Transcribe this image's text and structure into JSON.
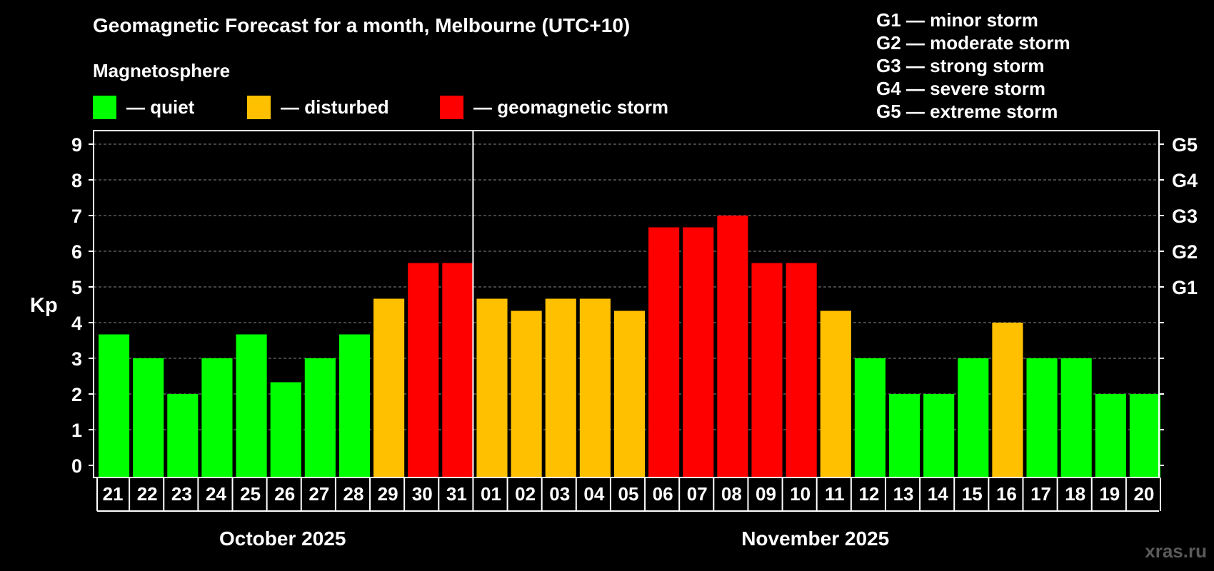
{
  "title": "Geomagnetic Forecast for a month, Melbourne (UTC+10)",
  "legend": {
    "heading": "Magnetosphere",
    "items": [
      {
        "label": "— quiet",
        "color": "#00ff00"
      },
      {
        "label": "— disturbed",
        "color": "#ffc000"
      },
      {
        "label": "— geomagnetic storm",
        "color": "#ff0000"
      }
    ]
  },
  "storm_scale": [
    "G1 — minor storm",
    "G2 — moderate storm",
    "G3 — strong storm",
    "G4 — severe storm",
    "G5 — extreme storm"
  ],
  "watermark": "xras.ru",
  "chart_data": {
    "type": "bar",
    "ylabel": "Kp",
    "ylim": [
      0,
      9
    ],
    "yticks": [
      "0",
      "1",
      "2",
      "3",
      "4",
      "5",
      "6",
      "7",
      "8",
      "9"
    ],
    "right_axis_labels": [
      {
        "value": 5,
        "label": "G1"
      },
      {
        "value": 6,
        "label": "G2"
      },
      {
        "value": 7,
        "label": "G3"
      },
      {
        "value": 8,
        "label": "G4"
      },
      {
        "value": 9,
        "label": "G5"
      }
    ],
    "grid": true,
    "months": [
      {
        "label": "October 2025",
        "days": 11
      },
      {
        "label": "November 2025",
        "days": 20
      }
    ],
    "categories": [
      "21",
      "22",
      "23",
      "24",
      "25",
      "26",
      "27",
      "28",
      "29",
      "30",
      "31",
      "01",
      "02",
      "03",
      "04",
      "05",
      "06",
      "07",
      "08",
      "09",
      "10",
      "11",
      "12",
      "13",
      "14",
      "15",
      "16",
      "17",
      "18",
      "19",
      "20"
    ],
    "values": [
      3.67,
      3,
      2,
      3,
      3.67,
      2.33,
      3,
      3.67,
      4.67,
      5.67,
      5.67,
      4.67,
      4.33,
      4.67,
      4.67,
      4.33,
      6.67,
      6.67,
      7,
      5.67,
      5.67,
      4.33,
      3,
      2,
      2,
      3,
      4,
      3,
      3,
      2,
      2
    ],
    "levels": [
      "quiet",
      "quiet",
      "quiet",
      "quiet",
      "quiet",
      "quiet",
      "quiet",
      "quiet",
      "disturbed",
      "storm",
      "storm",
      "disturbed",
      "disturbed",
      "disturbed",
      "disturbed",
      "disturbed",
      "storm",
      "storm",
      "storm",
      "storm",
      "storm",
      "disturbed",
      "quiet",
      "quiet",
      "quiet",
      "quiet",
      "disturbed",
      "quiet",
      "quiet",
      "quiet",
      "quiet"
    ],
    "colors": {
      "quiet": "#00ff00",
      "disturbed": "#ffc000",
      "storm": "#ff0000"
    }
  }
}
